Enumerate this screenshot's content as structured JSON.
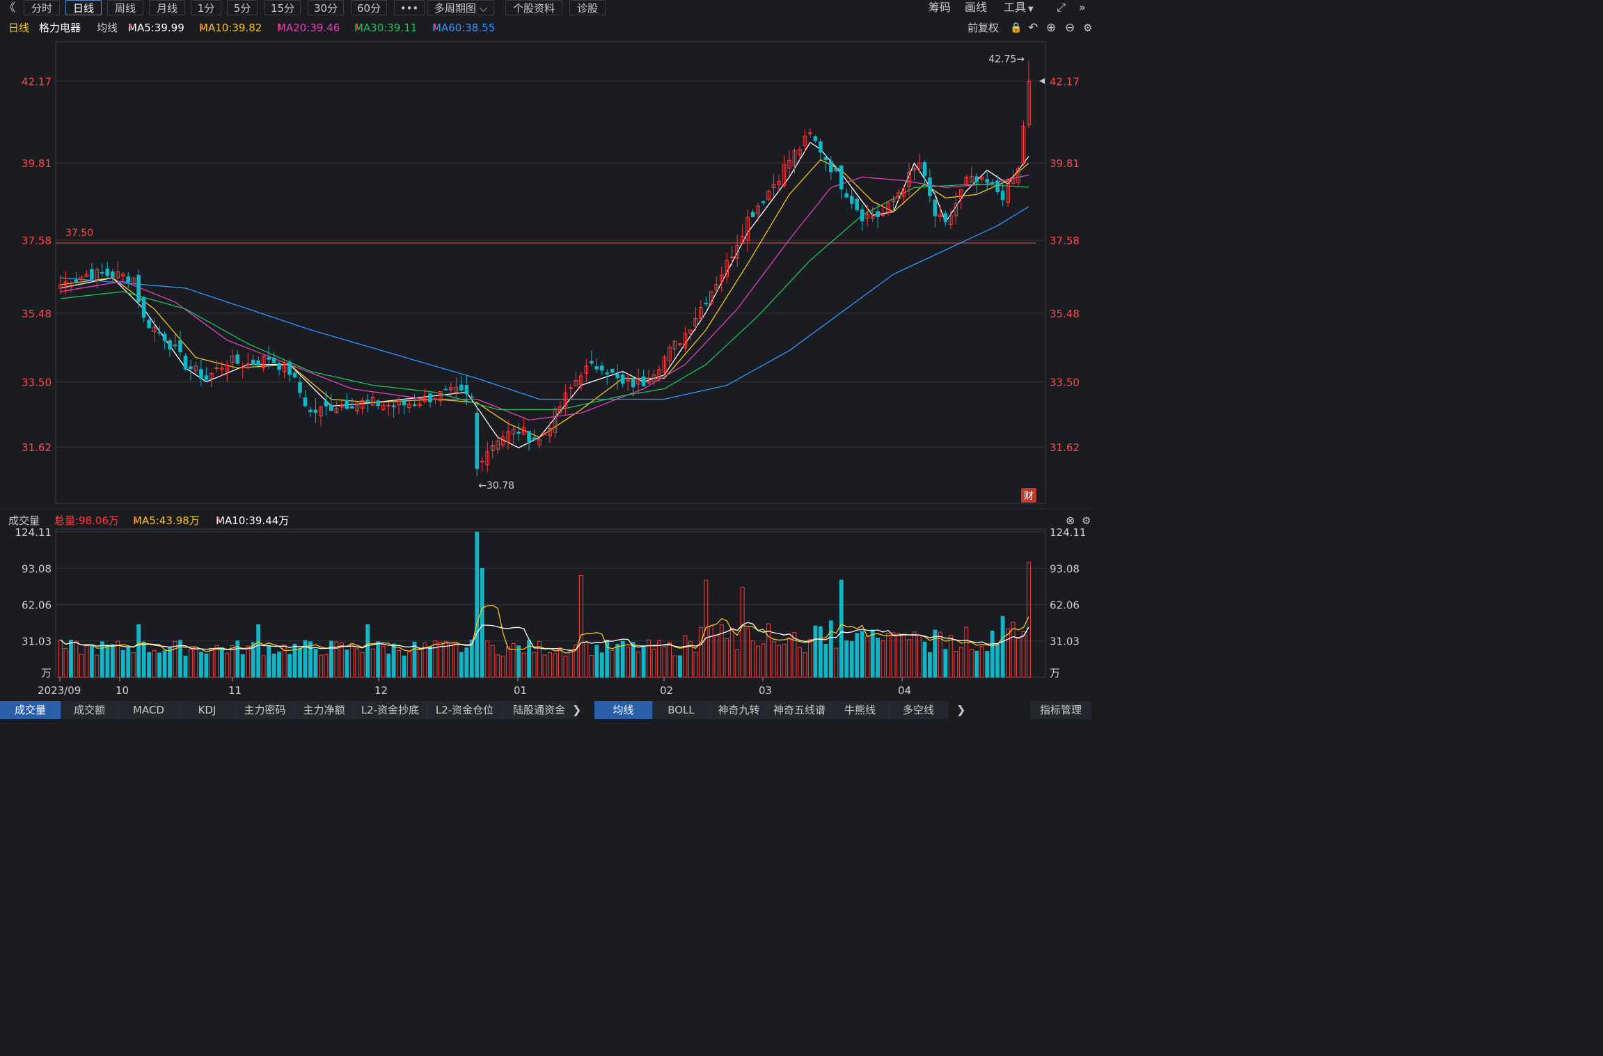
{
  "toolbar": {
    "back_icon": "double-chevron-left-icon",
    "items": [
      "分时",
      "日线",
      "周线",
      "月线",
      "1分",
      "5分",
      "15分",
      "30分",
      "60分",
      "•••",
      "多周期图 ⌵",
      "个股资料",
      "诊股"
    ],
    "active_index": 1,
    "right_items": [
      "筹码",
      "画线",
      "工具"
    ]
  },
  "legend": {
    "period": "日线",
    "stock_name": "格力电器",
    "ma_label": "均线",
    "ma": [
      {
        "text": "MA5:39.99",
        "color": "#ffffff"
      },
      {
        "text": "MA10:39.82",
        "color": "#f5c518"
      },
      {
        "text": "MA20:39.46",
        "color": "#e040b8"
      },
      {
        "text": "MA30:39.11",
        "color": "#19c35a"
      },
      {
        "text": "MA60:38.55",
        "color": "#2f96ff"
      }
    ],
    "adjust": "前复权"
  },
  "price_axis": {
    "ticks": [
      "42.17",
      "39.81",
      "37.58",
      "35.48",
      "33.50",
      "31.62"
    ],
    "line_label": "37.50",
    "max_label": "42.75→",
    "min_label": "←30.78",
    "fin_badge": "财"
  },
  "volume_panel": {
    "title": "成交量",
    "total": "总量:98.06万",
    "ma5": "MA5:43.98万",
    "ma10": "MA10:39.44万",
    "ticks": [
      "124.11",
      "93.08",
      "62.06",
      "31.03",
      "万"
    ]
  },
  "x_axis_labels": [
    "2023/09",
    "10",
    "11",
    "12",
    "01",
    "02",
    "03",
    "04"
  ],
  "bottom_tabs_left": [
    "成交量",
    "成交额",
    "MACD",
    "KDJ",
    "主力密码",
    "主力净额",
    "L2-资金抄底",
    "L2-资金仓位",
    "陆股通资金"
  ],
  "bottom_tabs_right": [
    "均线",
    "BOLL",
    "神奇九转",
    "神奇五线谱",
    "牛熊线",
    "多空线"
  ],
  "bottom_right": "指标管理",
  "colors": {
    "up": "#ff3b3b",
    "down": "#12b5c5",
    "bg": "#1b1c21"
  },
  "chart_data": {
    "type": "candlestick",
    "price_range": [
      30.0,
      43.3
    ],
    "support_line": 37.5,
    "high": 42.75,
    "low": 30.78,
    "anchors": [
      [
        0,
        36.3
      ],
      [
        5,
        36.6
      ],
      [
        10,
        36.6
      ],
      [
        14,
        36.5
      ],
      [
        16,
        35.3
      ],
      [
        20,
        34.8
      ],
      [
        24,
        34.0
      ],
      [
        28,
        33.6
      ],
      [
        32,
        34.1
      ],
      [
        36,
        34.0
      ],
      [
        40,
        34.2
      ],
      [
        44,
        33.8
      ],
      [
        48,
        32.6
      ],
      [
        52,
        32.8
      ],
      [
        56,
        32.9
      ],
      [
        60,
        32.9
      ],
      [
        64,
        32.8
      ],
      [
        68,
        32.9
      ],
      [
        72,
        33.1
      ],
      [
        76,
        33.2
      ],
      [
        79,
        33.0
      ],
      [
        80,
        31.2
      ],
      [
        84,
        31.9
      ],
      [
        88,
        32.1
      ],
      [
        92,
        31.8
      ],
      [
        96,
        32.8
      ],
      [
        100,
        33.8
      ],
      [
        104,
        34.0
      ],
      [
        108,
        33.4
      ],
      [
        112,
        33.5
      ],
      [
        116,
        34.2
      ],
      [
        120,
        34.9
      ],
      [
        124,
        35.9
      ],
      [
        128,
        36.9
      ],
      [
        132,
        38.2
      ],
      [
        136,
        39.0
      ],
      [
        140,
        39.9
      ],
      [
        144,
        40.6
      ],
      [
        146,
        40.2
      ],
      [
        150,
        39.2
      ],
      [
        154,
        38.3
      ],
      [
        158,
        38.3
      ],
      [
        162,
        39.2
      ],
      [
        165,
        39.8
      ],
      [
        168,
        38.3
      ],
      [
        170,
        38.0
      ],
      [
        174,
        39.3
      ],
      [
        178,
        39.2
      ],
      [
        181,
        38.9
      ],
      [
        184,
        39.6
      ],
      [
        186,
        42.2
      ]
    ],
    "moving_averages": {
      "MA5": [
        [
          0,
          36.2
        ],
        [
          10,
          36.5
        ],
        [
          16,
          35.6
        ],
        [
          24,
          33.9
        ],
        [
          28,
          33.5
        ],
        [
          36,
          34.0
        ],
        [
          44,
          34.0
        ],
        [
          52,
          32.8
        ],
        [
          60,
          32.9
        ],
        [
          72,
          33.1
        ],
        [
          78,
          33.2
        ],
        [
          84,
          31.9
        ],
        [
          88,
          31.6
        ],
        [
          92,
          31.9
        ],
        [
          100,
          33.4
        ],
        [
          108,
          33.8
        ],
        [
          112,
          33.5
        ],
        [
          116,
          33.7
        ],
        [
          124,
          35.5
        ],
        [
          132,
          37.8
        ],
        [
          140,
          39.4
        ],
        [
          144,
          40.4
        ],
        [
          146,
          40.2
        ],
        [
          150,
          39.5
        ],
        [
          156,
          38.3
        ],
        [
          160,
          38.4
        ],
        [
          164,
          39.8
        ],
        [
          168,
          38.9
        ],
        [
          170,
          38.1
        ],
        [
          174,
          39.0
        ],
        [
          178,
          39.6
        ],
        [
          182,
          39.2
        ],
        [
          186,
          40.0
        ]
      ],
      "MA10": [
        [
          0,
          36.3
        ],
        [
          10,
          36.5
        ],
        [
          18,
          35.6
        ],
        [
          26,
          34.2
        ],
        [
          34,
          33.9
        ],
        [
          44,
          34.0
        ],
        [
          52,
          33.0
        ],
        [
          60,
          32.9
        ],
        [
          72,
          33.0
        ],
        [
          80,
          32.9
        ],
        [
          86,
          32.3
        ],
        [
          92,
          31.9
        ],
        [
          100,
          32.7
        ],
        [
          108,
          33.6
        ],
        [
          116,
          33.6
        ],
        [
          124,
          35.0
        ],
        [
          132,
          36.9
        ],
        [
          140,
          38.9
        ],
        [
          146,
          39.9
        ],
        [
          150,
          39.6
        ],
        [
          156,
          38.7
        ],
        [
          160,
          38.4
        ],
        [
          166,
          39.2
        ],
        [
          170,
          38.8
        ],
        [
          176,
          38.9
        ],
        [
          182,
          39.3
        ],
        [
          186,
          39.8
        ]
      ],
      "MA20": [
        [
          0,
          36.1
        ],
        [
          12,
          36.4
        ],
        [
          22,
          35.8
        ],
        [
          32,
          34.7
        ],
        [
          44,
          34.0
        ],
        [
          56,
          33.3
        ],
        [
          70,
          33.0
        ],
        [
          80,
          33.0
        ],
        [
          90,
          32.4
        ],
        [
          100,
          32.6
        ],
        [
          112,
          33.3
        ],
        [
          120,
          34.0
        ],
        [
          130,
          35.6
        ],
        [
          140,
          37.6
        ],
        [
          148,
          39.1
        ],
        [
          154,
          39.4
        ],
        [
          162,
          39.3
        ],
        [
          170,
          39.1
        ],
        [
          178,
          39.2
        ],
        [
          186,
          39.46
        ]
      ],
      "MA30": [
        [
          0,
          35.9
        ],
        [
          12,
          36.1
        ],
        [
          24,
          35.6
        ],
        [
          36,
          34.6
        ],
        [
          48,
          33.8
        ],
        [
          60,
          33.4
        ],
        [
          72,
          33.2
        ],
        [
          84,
          32.7
        ],
        [
          96,
          32.7
        ],
        [
          108,
          33.1
        ],
        [
          116,
          33.3
        ],
        [
          124,
          34.0
        ],
        [
          134,
          35.4
        ],
        [
          144,
          37.0
        ],
        [
          154,
          38.3
        ],
        [
          164,
          39.1
        ],
        [
          176,
          39.2
        ],
        [
          186,
          39.11
        ]
      ],
      "MA60": [
        [
          0,
          36.5
        ],
        [
          24,
          36.2
        ],
        [
          48,
          35.0
        ],
        [
          64,
          34.3
        ],
        [
          80,
          33.6
        ],
        [
          92,
          33.0
        ],
        [
          104,
          33.0
        ],
        [
          116,
          33.0
        ],
        [
          128,
          33.4
        ],
        [
          140,
          34.4
        ],
        [
          150,
          35.5
        ],
        [
          160,
          36.6
        ],
        [
          170,
          37.3
        ],
        [
          180,
          38.0
        ],
        [
          186,
          38.55
        ]
      ]
    },
    "volume_range": [
      0,
      124.11
    ],
    "volume_unit": "万",
    "volume_ma5_last": 43.98,
    "volume_ma10_last": 39.44,
    "volume_total_last": 98.06
  }
}
